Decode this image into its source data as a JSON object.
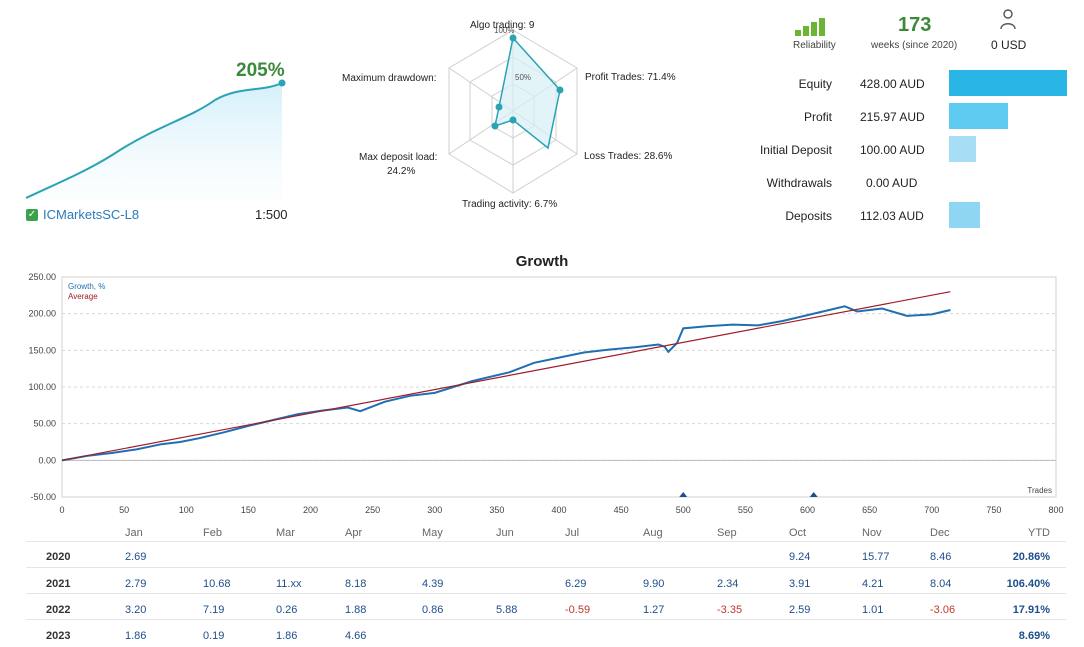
{
  "summary": {
    "growth_pct": "205%",
    "broker": "ICMarketsSC-L8",
    "leverage": "1:500",
    "reliability_label": "Reliability",
    "weeks_value": "173",
    "weeks_label": "weeks (since 2020)",
    "usd_value": "0 USD"
  },
  "radar": {
    "labels": {
      "top": "Algo trading: 9",
      "right_top": "Profit Trades: 71.4%",
      "right_bottom": "Loss Trades: 28.6%",
      "bottom": "Trading activity: 6.7%",
      "left_bottom": "Max deposit load:",
      "left_bottom_val": "24.2%",
      "left_top": "Maximum drawdown:"
    },
    "ring_labels": [
      "100%",
      "50%"
    ],
    "values": [
      95,
      71.4,
      28.6,
      6.7,
      24.2,
      12
    ]
  },
  "stats": [
    {
      "label": "Equity",
      "value": "428.00 AUD",
      "bar": 1.0,
      "color": "#29b6e6"
    },
    {
      "label": "Profit",
      "value": "215.97 AUD",
      "bar": 0.5,
      "color": "#5fcbf0"
    },
    {
      "label": "Initial Deposit",
      "value": "100.00 AUD",
      "bar": 0.23,
      "color": "#a7def5"
    },
    {
      "label": "Withdrawals",
      "value": "0.00 AUD",
      "bar": 0,
      "color": "#a7def5"
    },
    {
      "label": "Deposits",
      "value": "112.03 AUD",
      "bar": 0.26,
      "color": "#8fd6f2"
    }
  ],
  "chart_title": "Growth",
  "chart_data": {
    "type": "line",
    "title": "Growth",
    "xlabel": "Trades",
    "ylabel": "",
    "xlim": [
      0,
      800
    ],
    "ylim": [
      -50,
      250
    ],
    "x_ticks": [
      0,
      50,
      100,
      150,
      200,
      250,
      300,
      350,
      400,
      450,
      500,
      550,
      600,
      650,
      700,
      750,
      800
    ],
    "y_ticks": [
      -50,
      0,
      50,
      100,
      150,
      200,
      250
    ],
    "y_tick_labels": [
      "-50.00",
      "0.00",
      "50.00",
      "100.00",
      "150.00",
      "200.00",
      "250.00"
    ],
    "legend": "top-left",
    "series": [
      {
        "name": "Growth, %",
        "color": "#1f6fb2",
        "x": [
          0,
          20,
          40,
          60,
          80,
          95,
          110,
          130,
          150,
          170,
          190,
          210,
          230,
          240,
          260,
          280,
          300,
          330,
          360,
          380,
          400,
          420,
          440,
          460,
          480,
          485,
          488,
          495,
          500,
          520,
          540,
          560,
          580,
          600,
          620,
          630,
          640,
          660,
          680,
          700,
          715
        ],
        "y": [
          0,
          6,
          10,
          15,
          22,
          25,
          30,
          38,
          47,
          55,
          63,
          68,
          72,
          67,
          80,
          88,
          92,
          108,
          120,
          133,
          140,
          147,
          151,
          154,
          158,
          155,
          148,
          160,
          180,
          183,
          185,
          184,
          190,
          198,
          206,
          210,
          203,
          207,
          197,
          199,
          205
        ]
      },
      {
        "name": "Average",
        "color": "#a01c28",
        "x": [
          0,
          715
        ],
        "y": [
          0,
          230
        ]
      }
    ],
    "markers_x": [
      500,
      605
    ]
  },
  "table": {
    "headers": [
      "Jan",
      "Feb",
      "Mar",
      "Apr",
      "May",
      "Jun",
      "Jul",
      "Aug",
      "Sep",
      "Oct",
      "Nov",
      "Dec",
      "YTD"
    ],
    "rows": [
      {
        "year": "2020",
        "values": [
          "2.69",
          "",
          "",
          "",
          "",
          "",
          "",
          "",
          "",
          "9.24",
          "15.77",
          "8.46",
          "20.86%"
        ]
      },
      {
        "year": "2021",
        "values": [
          "2.79",
          "10.68",
          "11.xx",
          "8.18",
          "4.39",
          "",
          "6.29",
          "9.90",
          "2.34",
          "3.91",
          "4.21",
          "8.04",
          "106.40%"
        ]
      },
      {
        "year": "2022",
        "values": [
          "3.20",
          "7.19",
          "0.26",
          "1.88",
          "0.86",
          "5.88",
          "-0.59",
          "1.27",
          "-3.35",
          "2.59",
          "1.01",
          "-3.06",
          "17.91%"
        ]
      },
      {
        "year": "2023",
        "values": [
          "1.86",
          "0.19",
          "1.86",
          "4.66",
          "",
          "",
          "",
          "",
          "",
          "",
          "",
          "",
          "8.69%"
        ]
      }
    ]
  }
}
